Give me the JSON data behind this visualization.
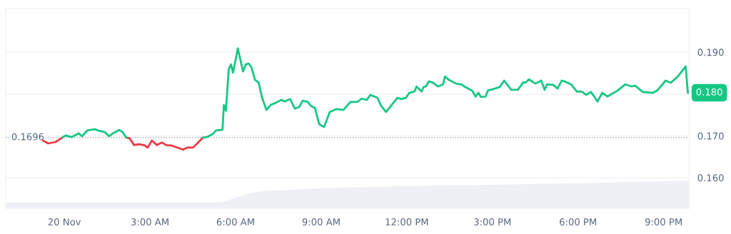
{
  "chart_data": {
    "type": "line",
    "xlim": [
      -2.05,
      21.9
    ],
    "xticks": [
      {
        "value": 0,
        "label": "20 Nov"
      },
      {
        "value": 3,
        "label": "3:00 AM"
      },
      {
        "value": 6,
        "label": "6:00 AM"
      },
      {
        "value": 9,
        "label": "9:00 AM"
      },
      {
        "value": 12,
        "label": "12:00 PM"
      },
      {
        "value": 15,
        "label": "3:00 PM"
      },
      {
        "value": 18,
        "label": "6:00 PM"
      },
      {
        "value": 21,
        "label": "9:00 PM"
      }
    ],
    "ylim": [
      0.1527,
      0.2004
    ],
    "yticks": [
      {
        "value": 0.16,
        "label": "0.160"
      },
      {
        "value": 0.17,
        "label": "0.170"
      },
      {
        "value": 0.18,
        "label": null
      },
      {
        "value": 0.19,
        "label": "0.190"
      }
    ],
    "grid": "y",
    "ref_lines": [
      {
        "axis": "y",
        "value": 0.1696,
        "label": "0.1696",
        "color": "#a6abb8",
        "line_style": "dotted"
      }
    ],
    "annotations": [
      {
        "text": "0.180",
        "x": 21.85,
        "y": 0.1803
      }
    ],
    "series": [
      {
        "type": "area",
        "color": "#eef0f6",
        "x": [
          -2.05,
          5.5,
          6.0,
          6.5,
          7.0,
          9.0,
          12.0,
          15.0,
          18.0,
          21.9
        ],
        "values": [
          0.1541,
          0.1541,
          0.1552,
          0.1563,
          0.1568,
          0.1575,
          0.158,
          0.1583,
          0.1587,
          0.1593
        ]
      },
      {
        "color": "#ea3943",
        "x": [
          -0.75,
          -0.57,
          -0.32,
          -0.07,
          1.0,
          2.17,
          2.29,
          2.44,
          2.62,
          2.82,
          2.92,
          3.07,
          3.24,
          3.42,
          3.57,
          3.74,
          3.92,
          4.16,
          4.31,
          4.51,
          4.69,
          4.86
        ],
        "values": [
          0.1689,
          0.1682,
          0.1685,
          0.1696,
          null,
          0.1696,
          0.1694,
          0.1678,
          0.168,
          0.1677,
          0.1672,
          0.1689,
          0.1678,
          0.1684,
          0.1678,
          0.1677,
          0.1673,
          0.1667,
          0.1672,
          0.1672,
          0.1684,
          0.1696
        ]
      },
      {
        "color": "#16c784",
        "x": [
          -0.07,
          0.05,
          0.25,
          0.5,
          0.62,
          0.8,
          1.07,
          1.17,
          1.42,
          1.57,
          1.7,
          1.92,
          2.04,
          2.17,
          3.5,
          4.86,
          4.99,
          5.19,
          5.31,
          5.49,
          5.54,
          5.59,
          5.66,
          5.76,
          5.84,
          5.91,
          6.08,
          6.26,
          6.36,
          6.46,
          6.56,
          6.68,
          6.81,
          6.93,
          7.08,
          7.23,
          7.41,
          7.61,
          7.73,
          7.91,
          8.08,
          8.23,
          8.35,
          8.53,
          8.65,
          8.78,
          8.93,
          9.1,
          9.3,
          9.53,
          9.78,
          10.02,
          10.27,
          10.42,
          10.6,
          10.72,
          10.97,
          11.1,
          11.27,
          11.67,
          11.8,
          11.97,
          12.09,
          12.27,
          12.34,
          12.52,
          12.59,
          12.67,
          12.77,
          12.92,
          13.09,
          13.27,
          13.34,
          13.47,
          13.72,
          13.92,
          14.04,
          14.29,
          14.41,
          14.51,
          14.59,
          14.76,
          14.84,
          15.09,
          15.26,
          15.41,
          15.66,
          15.89,
          16.08,
          16.16,
          16.28,
          16.51,
          16.71,
          16.83,
          16.91,
          17.13,
          17.28,
          17.43,
          17.53,
          17.76,
          17.96,
          18.13,
          18.28,
          18.45,
          18.58,
          18.68,
          18.85,
          19.03,
          19.38,
          19.65,
          19.88,
          20.0,
          20.27,
          20.62,
          20.77,
          21.07,
          21.25,
          21.5,
          21.77,
          21.85
        ],
        "values": [
          0.1696,
          0.1701,
          0.1697,
          0.1706,
          0.1699,
          0.1713,
          0.1716,
          0.1713,
          0.1709,
          0.1699,
          0.1706,
          0.1714,
          0.1709,
          0.1696,
          null,
          0.1696,
          0.1697,
          0.1704,
          0.1713,
          0.1714,
          0.1714,
          0.1774,
          0.176,
          0.1859,
          0.1871,
          0.1851,
          0.1909,
          0.1854,
          0.1871,
          0.1873,
          0.1863,
          0.1834,
          0.1827,
          0.1791,
          0.1762,
          0.1774,
          0.1779,
          0.1786,
          0.1782,
          0.1788,
          0.1765,
          0.1769,
          0.1784,
          0.1781,
          0.1771,
          0.1767,
          0.1728,
          0.1721,
          0.1757,
          0.1764,
          0.1762,
          0.1781,
          0.1781,
          0.1789,
          0.1786,
          0.1798,
          0.1791,
          0.1772,
          0.1757,
          0.1791,
          0.1788,
          0.1791,
          0.1803,
          0.1806,
          0.1818,
          0.1806,
          0.1817,
          0.1818,
          0.183,
          0.1827,
          0.1818,
          0.1823,
          0.1842,
          0.1834,
          0.1825,
          0.1823,
          0.1817,
          0.1808,
          0.1794,
          0.1803,
          0.1793,
          0.1794,
          0.1808,
          0.1813,
          0.1817,
          0.1832,
          0.181,
          0.181,
          0.1828,
          0.1827,
          0.1835,
          0.1825,
          0.1832,
          0.181,
          0.1823,
          0.1822,
          0.1813,
          0.1832,
          0.183,
          0.1823,
          0.1806,
          0.1806,
          0.1798,
          0.1805,
          0.1793,
          0.1782,
          0.1803,
          0.1794,
          0.1808,
          0.1823,
          0.1818,
          0.182,
          0.1805,
          0.1803,
          0.1808,
          0.1832,
          0.1827,
          0.1842,
          0.1866,
          0.1803
        ]
      }
    ]
  }
}
